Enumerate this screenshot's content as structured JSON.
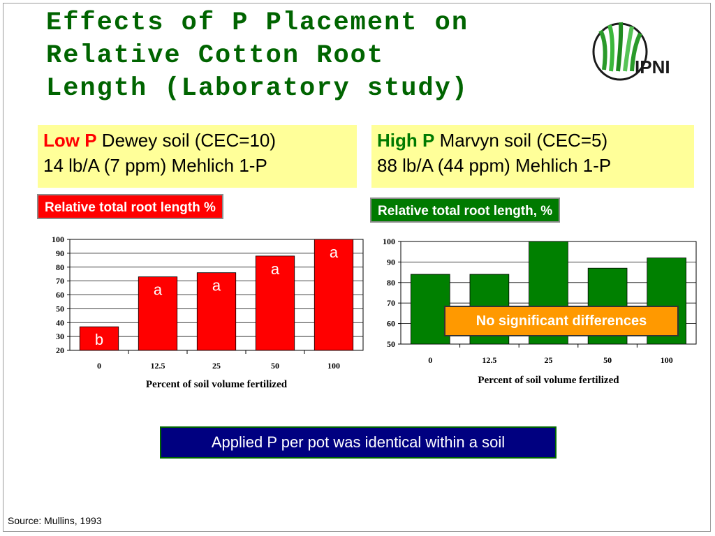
{
  "title": "Effects of P Placement on\nRelative Cotton Root\nLength (Laboratory study)",
  "logo": {
    "text": "IPNI",
    "icon": "ipni-grass-logo-icon"
  },
  "left_panel": {
    "level": "Low P",
    "soil": " Dewey soil (CEC=10)",
    "rate": "14 lb/A  (7 ppm) Mehlich 1-P",
    "label": "Relative total root length %",
    "label_color": "#ff0000"
  },
  "right_panel": {
    "level": "High P",
    "soil": " Marvyn soil (CEC=5)",
    "rate": "88 lb/A (44 ppm) Mehlich 1-P",
    "label": "Relative total root length, %",
    "label_color": "#007a00",
    "note": "No significant differences"
  },
  "footer": {
    "note": "Applied P per pot was identical within a soil",
    "source": "Source: Mullins, 1993"
  },
  "chart_data": [
    {
      "type": "bar",
      "categories": [
        "0",
        "12.5",
        "25",
        "50",
        "100"
      ],
      "values": [
        37,
        73,
        76,
        88,
        100
      ],
      "letters": [
        "b",
        "a",
        "a",
        "a",
        "a"
      ],
      "ylabel": "Relative total root length %",
      "xlabel": "Percent of soil volume fertilized",
      "ylim": [
        20,
        100
      ],
      "yticks": [
        20,
        30,
        40,
        50,
        60,
        70,
        80,
        90,
        100
      ],
      "grid": true,
      "color": "#ff0000"
    },
    {
      "type": "bar",
      "categories": [
        "0",
        "12.5",
        "25",
        "50",
        "100"
      ],
      "values": [
        84,
        84,
        100,
        87,
        92
      ],
      "ylabel": "Relative total root length, %",
      "xlabel": "Percent of soil volume fertilized",
      "ylim": [
        50,
        100
      ],
      "yticks": [
        50,
        60,
        70,
        80,
        90,
        100
      ],
      "grid": true,
      "color": "#008000"
    }
  ]
}
